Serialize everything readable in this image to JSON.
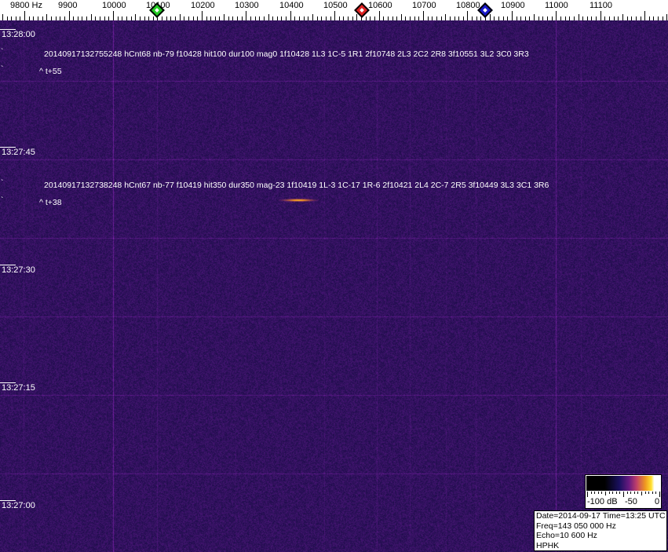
{
  "chart_data": {
    "type": "heatmap",
    "subtype": "spectrogram-waterfall",
    "x_unit": "Hz",
    "x_tick_labels": [
      "9800 Hz",
      "9900",
      "10000",
      "10100",
      "10200",
      "10300",
      "10400",
      "10500",
      "10600",
      "10700",
      "10800",
      "10900",
      "11000",
      "11100"
    ],
    "x_ticks": [
      9800,
      9900,
      10000,
      10100,
      10200,
      10300,
      10400,
      10500,
      10600,
      10700,
      10800,
      10900,
      11000,
      11100
    ],
    "xlim": [
      9745,
      11253
    ],
    "y_tick_labels": [
      "13:28:00",
      "13:27:45",
      "13:27:30",
      "13:27:15",
      "13:27:00"
    ],
    "markers": [
      {
        "freq": 10100,
        "color": "#22cc22"
      },
      {
        "freq": 10562,
        "color": "#dd2222"
      },
      {
        "freq": 10840,
        "color": "#1a1acc"
      }
    ],
    "annotations": [
      {
        "text": "20140917132755248 hCnt68 nb-79 f10428 hit100 dur100 mag0 1f10428 1L3 1C-5 1R1 2f10748 2L3 2C2 2R8 3f10551 3L2 3C0 3R3",
        "sub": "^ t+55"
      },
      {
        "text": "20140917132738248 hCnt67 nb-77 f10419 hit350 dur350 mag-23 1f10419 1L-3 1C-17 1R-6 2f10421 2L4 2C-7 2R5 3f10449 3L3 3C1 3R6",
        "sub": "^ t+38"
      }
    ],
    "echo": {
      "freq": 10419,
      "time": "13:27:38"
    },
    "colorbar": {
      "labels": [
        "-100 dB",
        "-50",
        "0"
      ],
      "range_db": [
        -100,
        0
      ]
    },
    "colors": {
      "background": "#1c1668",
      "line": "#a03a8a",
      "echo": "#ffb020"
    }
  },
  "info": {
    "line1": "Date=2014-09-17 Time=13:25 UTC",
    "line2": "Freq=143 050 000 Hz",
    "line3": "Echo=10 600 Hz",
    "line4": "HPHK"
  }
}
